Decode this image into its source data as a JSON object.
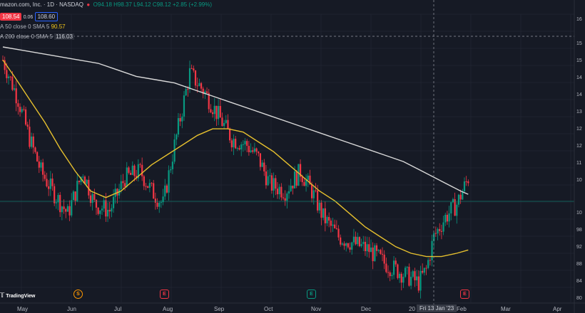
{
  "legend": {
    "title": "mazon.com, Inc. · 1D · NASDAQ",
    "box1": "108.54",
    "box_mid": "0.06",
    "box2": "108.60",
    "ohlc": "O94.18 H98.37 L94.12 C98.12 +2.85 (+2.99%)",
    "sma50_label": "A 50 close 0 SMA 5",
    "sma50_value": "90.57",
    "sma200_label": "A 200 close 0 SMA 5",
    "sma200_value": "116.03"
  },
  "x_axis": [
    "May",
    "Jun",
    "Jul",
    "Aug",
    "Sep",
    "Oct",
    "Nov",
    "Dec",
    "20",
    "Feb",
    "Mar",
    "Apr"
  ],
  "crosshair_x_label": "Fri 13 Jan '23",
  "y_axis": [
    "16",
    "15",
    "15",
    "14",
    "14",
    "13",
    "12",
    "12",
    "11",
    "10",
    "10",
    "98",
    "92",
    "88",
    "84",
    "80"
  ],
  "markers": {
    "s": "S",
    "e": "E"
  },
  "brand": "TradingView",
  "colors": {
    "up": "#089981",
    "down": "#f23645",
    "sma50": "#e6c02e",
    "sma200": "#d9d9d9"
  },
  "chart_data": {
    "type": "candlestick",
    "ylim": [
      78,
      166
    ],
    "sma50": [
      [
        0,
        152
      ],
      [
        6,
        147
      ],
      [
        14,
        140
      ],
      [
        22,
        133
      ],
      [
        30,
        125
      ],
      [
        38,
        118
      ],
      [
        46,
        112
      ],
      [
        54,
        110
      ],
      [
        62,
        112
      ],
      [
        70,
        116
      ],
      [
        78,
        120
      ],
      [
        86,
        123
      ],
      [
        94,
        126
      ],
      [
        102,
        129
      ],
      [
        110,
        131
      ],
      [
        118,
        131
      ],
      [
        126,
        130
      ],
      [
        134,
        127
      ],
      [
        142,
        124
      ],
      [
        150,
        120
      ],
      [
        158,
        116
      ],
      [
        166,
        112
      ],
      [
        174,
        109
      ],
      [
        182,
        105
      ],
      [
        190,
        101
      ],
      [
        198,
        98
      ],
      [
        206,
        95
      ],
      [
        214,
        93
      ],
      [
        222,
        92
      ],
      [
        230,
        92
      ],
      [
        238,
        93
      ],
      [
        244,
        94
      ]
    ],
    "sma200": [
      [
        0,
        156
      ],
      [
        10,
        155
      ],
      [
        20,
        154
      ],
      [
        30,
        153
      ],
      [
        40,
        152
      ],
      [
        50,
        151
      ],
      [
        60,
        149
      ],
      [
        70,
        147
      ],
      [
        80,
        146
      ],
      [
        90,
        145
      ],
      [
        100,
        143
      ],
      [
        110,
        141
      ],
      [
        120,
        139
      ],
      [
        130,
        137
      ],
      [
        140,
        135
      ],
      [
        150,
        133
      ],
      [
        160,
        131
      ],
      [
        170,
        129
      ],
      [
        180,
        127
      ],
      [
        190,
        125
      ],
      [
        200,
        123
      ],
      [
        210,
        121
      ],
      [
        220,
        118
      ],
      [
        230,
        115
      ],
      [
        240,
        112
      ],
      [
        244,
        111
      ]
    ]
  }
}
